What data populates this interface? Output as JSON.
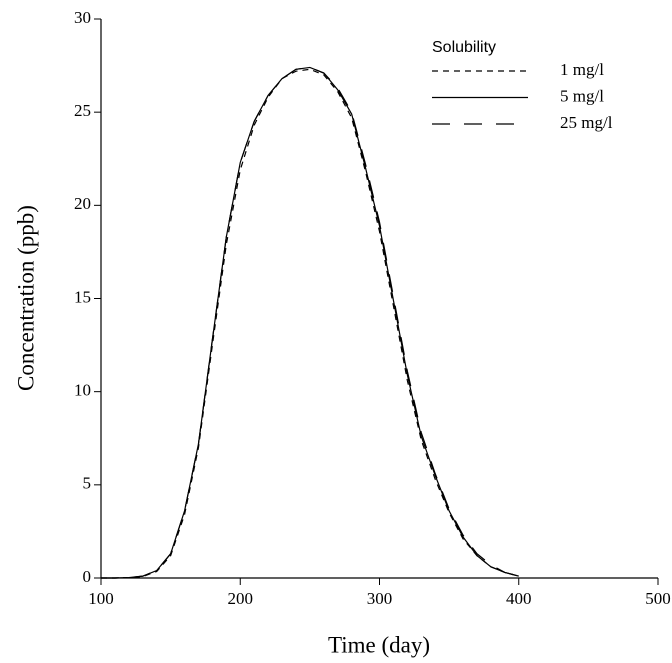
{
  "chart_data": {
    "type": "line",
    "x_label": "Time (day)",
    "y_label": "Concentration (ppb)",
    "legend_title": "Solubility",
    "x": [
      100,
      110,
      120,
      130,
      140,
      150,
      160,
      170,
      180,
      190,
      200,
      210,
      220,
      230,
      240,
      250,
      260,
      270,
      280,
      290,
      300,
      310,
      320,
      330,
      340,
      350,
      360,
      370,
      380,
      390,
      400
    ],
    "series": [
      {
        "name": "1 mg/l",
        "color": "#000000",
        "dash": "6,5",
        "values": [
          0,
          0,
          0.02,
          0.08,
          0.35,
          1.2,
          3.4,
          7.0,
          12.5,
          17.9,
          21.9,
          24.3,
          25.8,
          26.8,
          27.2,
          27.3,
          27.0,
          26.1,
          24.7,
          21.8,
          18.6,
          14.6,
          10.6,
          7.4,
          5.3,
          3.5,
          2.1,
          1.2,
          0.6,
          0.3,
          0.1
        ]
      },
      {
        "name": "5 mg/l",
        "color": "#000000",
        "dash": "none",
        "values": [
          0,
          0,
          0.02,
          0.1,
          0.4,
          1.3,
          3.6,
          7.2,
          12.8,
          18.3,
          22.3,
          24.5,
          25.9,
          26.8,
          27.3,
          27.4,
          27.1,
          26.2,
          24.9,
          22.0,
          18.9,
          14.9,
          10.9,
          7.6,
          5.5,
          3.6,
          2.2,
          1.2,
          0.6,
          0.3,
          0.1
        ]
      },
      {
        "name": "25 mg/l",
        "color": "#000000",
        "dash": "18,14",
        "values": [
          0,
          0,
          0.02,
          0.1,
          0.4,
          1.3,
          3.6,
          7.2,
          12.8,
          18.3,
          22.3,
          24.5,
          25.9,
          26.8,
          27.3,
          27.4,
          27.1,
          26.3,
          25.0,
          22.2,
          19.1,
          15.1,
          11.1,
          7.8,
          5.6,
          3.7,
          2.3,
          1.3,
          0.7,
          0.3,
          0.1
        ]
      }
    ],
    "xlim": [
      100,
      500
    ],
    "xticks": [
      100,
      200,
      300,
      400,
      500
    ],
    "ylim": [
      0,
      30
    ],
    "yticks": [
      0,
      5,
      10,
      15,
      20,
      25,
      30
    ],
    "grid": false,
    "legend": "upper right"
  }
}
